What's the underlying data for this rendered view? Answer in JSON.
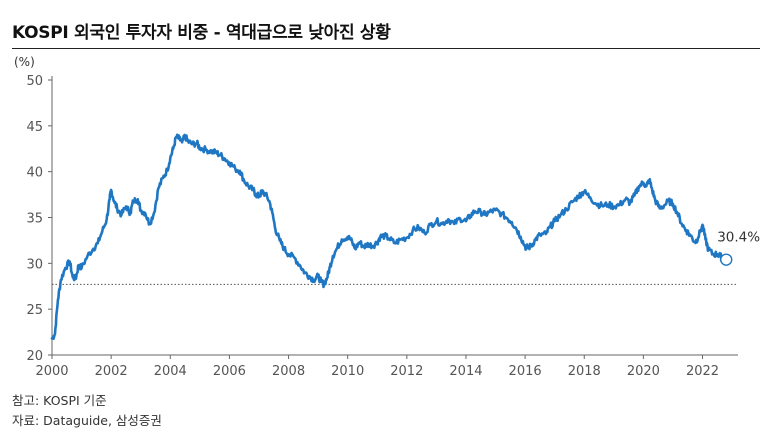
{
  "title": "KOSPI 외국인 투자자 비중 - 역대급으로 낮아진 상황",
  "notes": {
    "reference": "참고: KOSPI 기준",
    "source": "자료: Dataguide, 삼성증권"
  },
  "colors": {
    "line": "#1f77c4",
    "axis": "#666666",
    "reference_line": "#555555",
    "title_rule": "#222222"
  },
  "chart_data": {
    "type": "line",
    "title": "KOSPI 외국인 투자자 비중 - 역대급으로 낮아진 상황",
    "ylabel": "(%)",
    "xlabel": "",
    "ylim": [
      20,
      50
    ],
    "xlim": [
      2000,
      2023.2
    ],
    "y_ticks": [
      20,
      25,
      30,
      35,
      40,
      45,
      50
    ],
    "x_ticks": [
      2000,
      2002,
      2004,
      2006,
      2008,
      2010,
      2012,
      2014,
      2016,
      2018,
      2020,
      2022
    ],
    "grid": false,
    "reference_line": {
      "y": 27.7,
      "style": "dotted"
    },
    "annotation": {
      "text": "30.4%",
      "x": 2022.7,
      "y": 30.4
    },
    "series": [
      {
        "values": [
          [
            2000.0,
            21.8
          ],
          [
            2000.1,
            22.3
          ],
          [
            2000.2,
            26.0
          ],
          [
            2000.3,
            28.2
          ],
          [
            2000.45,
            29.5
          ],
          [
            2000.6,
            30.2
          ],
          [
            2000.7,
            28.5
          ],
          [
            2000.8,
            28.3
          ],
          [
            2000.9,
            29.8
          ],
          [
            2001.0,
            29.5
          ],
          [
            2001.2,
            30.8
          ],
          [
            2001.4,
            31.6
          ],
          [
            2001.55,
            32.2
          ],
          [
            2001.7,
            33.5
          ],
          [
            2001.85,
            34.8
          ],
          [
            2001.95,
            37.0
          ],
          [
            2002.0,
            38.0
          ],
          [
            2002.1,
            36.8
          ],
          [
            2002.2,
            36.0
          ],
          [
            2002.35,
            35.3
          ],
          [
            2002.5,
            36.2
          ],
          [
            2002.65,
            35.5
          ],
          [
            2002.75,
            36.8
          ],
          [
            2002.9,
            37.0
          ],
          [
            2003.0,
            35.8
          ],
          [
            2003.15,
            35.5
          ],
          [
            2003.3,
            34.3
          ],
          [
            2003.45,
            35.5
          ],
          [
            2003.6,
            38.2
          ],
          [
            2003.75,
            39.3
          ],
          [
            2003.9,
            40.2
          ],
          [
            2004.0,
            41.5
          ],
          [
            2004.1,
            42.5
          ],
          [
            2004.2,
            43.8
          ],
          [
            2004.3,
            43.6
          ],
          [
            2004.4,
            43.2
          ],
          [
            2004.5,
            43.9
          ],
          [
            2004.6,
            43.3
          ],
          [
            2004.75,
            43.0
          ],
          [
            2004.9,
            43.1
          ],
          [
            2005.0,
            42.6
          ],
          [
            2005.2,
            42.4
          ],
          [
            2005.4,
            42.2
          ],
          [
            2005.55,
            42.1
          ],
          [
            2005.7,
            41.8
          ],
          [
            2005.85,
            41.4
          ],
          [
            2006.0,
            41.0
          ],
          [
            2006.2,
            40.3
          ],
          [
            2006.35,
            40.1
          ],
          [
            2006.5,
            39.0
          ],
          [
            2006.65,
            38.4
          ],
          [
            2006.8,
            38.0
          ],
          [
            2006.9,
            37.5
          ],
          [
            2007.0,
            37.3
          ],
          [
            2007.1,
            37.8
          ],
          [
            2007.2,
            37.6
          ],
          [
            2007.35,
            36.8
          ],
          [
            2007.45,
            35.5
          ],
          [
            2007.55,
            33.8
          ],
          [
            2007.7,
            32.5
          ],
          [
            2007.85,
            31.6
          ],
          [
            2008.0,
            31.0
          ],
          [
            2008.2,
            30.6
          ],
          [
            2008.4,
            29.7
          ],
          [
            2008.55,
            29.0
          ],
          [
            2008.7,
            28.6
          ],
          [
            2008.85,
            28.2
          ],
          [
            2009.0,
            28.6
          ],
          [
            2009.1,
            28.0
          ],
          [
            2009.2,
            27.7
          ],
          [
            2009.3,
            28.4
          ],
          [
            2009.4,
            29.6
          ],
          [
            2009.5,
            30.8
          ],
          [
            2009.65,
            31.7
          ],
          [
            2009.8,
            32.6
          ],
          [
            2010.0,
            32.9
          ],
          [
            2010.1,
            32.6
          ],
          [
            2010.25,
            31.6
          ],
          [
            2010.4,
            32.3
          ],
          [
            2010.55,
            31.8
          ],
          [
            2010.7,
            32.1
          ],
          [
            2010.85,
            31.9
          ],
          [
            2011.0,
            32.3
          ],
          [
            2011.1,
            32.9
          ],
          [
            2011.25,
            33.0
          ],
          [
            2011.4,
            32.7
          ],
          [
            2011.6,
            32.2
          ],
          [
            2011.8,
            32.6
          ],
          [
            2012.0,
            32.8
          ],
          [
            2012.2,
            33.6
          ],
          [
            2012.4,
            33.9
          ],
          [
            2012.6,
            33.3
          ],
          [
            2012.8,
            34.2
          ],
          [
            2013.0,
            34.6
          ],
          [
            2013.2,
            34.3
          ],
          [
            2013.4,
            34.8
          ],
          [
            2013.6,
            34.3
          ],
          [
            2013.8,
            34.9
          ],
          [
            2014.0,
            34.6
          ],
          [
            2014.15,
            35.2
          ],
          [
            2014.3,
            35.7
          ],
          [
            2014.5,
            35.6
          ],
          [
            2014.65,
            35.3
          ],
          [
            2014.8,
            35.6
          ],
          [
            2015.0,
            35.8
          ],
          [
            2015.2,
            35.4
          ],
          [
            2015.4,
            34.9
          ],
          [
            2015.55,
            34.5
          ],
          [
            2015.7,
            33.8
          ],
          [
            2015.85,
            32.9
          ],
          [
            2016.0,
            31.8
          ],
          [
            2016.1,
            31.7
          ],
          [
            2016.2,
            31.9
          ],
          [
            2016.35,
            32.6
          ],
          [
            2016.5,
            33.1
          ],
          [
            2016.7,
            33.2
          ],
          [
            2016.85,
            34.0
          ],
          [
            2017.0,
            34.6
          ],
          [
            2017.2,
            35.3
          ],
          [
            2017.4,
            35.9
          ],
          [
            2017.6,
            36.7
          ],
          [
            2017.8,
            37.3
          ],
          [
            2017.9,
            37.6
          ],
          [
            2018.0,
            37.8
          ],
          [
            2018.2,
            37.2
          ],
          [
            2018.4,
            36.5
          ],
          [
            2018.6,
            36.3
          ],
          [
            2018.8,
            36.4
          ],
          [
            2019.0,
            36.2
          ],
          [
            2019.2,
            36.4
          ],
          [
            2019.4,
            37.0
          ],
          [
            2019.55,
            36.6
          ],
          [
            2019.7,
            37.4
          ],
          [
            2019.85,
            38.4
          ],
          [
            2020.0,
            38.8
          ],
          [
            2020.1,
            38.4
          ],
          [
            2020.2,
            39.1
          ],
          [
            2020.3,
            38.0
          ],
          [
            2020.4,
            36.9
          ],
          [
            2020.55,
            36.0
          ],
          [
            2020.7,
            36.3
          ],
          [
            2020.85,
            36.8
          ],
          [
            2021.0,
            36.5
          ],
          [
            2021.15,
            35.5
          ],
          [
            2021.3,
            34.3
          ],
          [
            2021.45,
            33.6
          ],
          [
            2021.6,
            33.0
          ],
          [
            2021.75,
            32.3
          ],
          [
            2021.85,
            32.8
          ],
          [
            2022.0,
            34.2
          ],
          [
            2022.1,
            32.6
          ],
          [
            2022.2,
            31.5
          ],
          [
            2022.35,
            31.0
          ],
          [
            2022.5,
            31.0
          ],
          [
            2022.6,
            30.8
          ],
          [
            2022.7,
            30.4
          ]
        ]
      }
    ]
  }
}
